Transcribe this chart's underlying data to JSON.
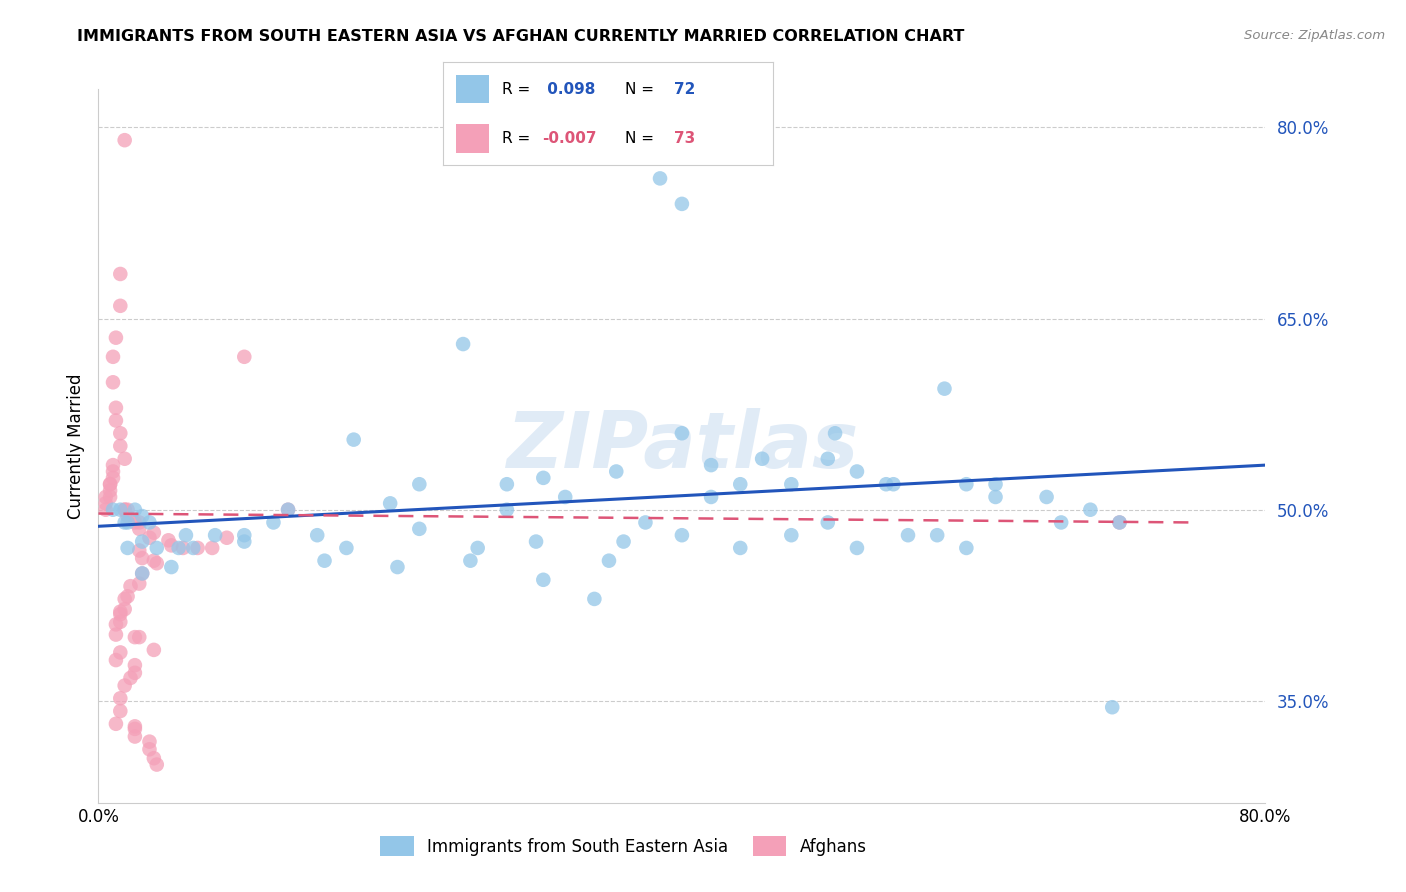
{
  "title": "IMMIGRANTS FROM SOUTH EASTERN ASIA VS AFGHAN CURRENTLY MARRIED CORRELATION CHART",
  "source": "Source: ZipAtlas.com",
  "ylabel": "Currently Married",
  "xlim": [
    0.0,
    0.8
  ],
  "ylim": [
    0.27,
    0.83
  ],
  "yticks": [
    0.35,
    0.5,
    0.65,
    0.8
  ],
  "ytick_labels": [
    "35.0%",
    "50.0%",
    "65.0%",
    "80.0%"
  ],
  "xticks": [
    0.0,
    0.2,
    0.4,
    0.6,
    0.8
  ],
  "xtick_labels": [
    "0.0%",
    "",
    "",
    "",
    "80.0%"
  ],
  "blue_color": "#93C6E8",
  "pink_color": "#F4A0B8",
  "blue_line_color": "#2255BB",
  "pink_line_color": "#DD5577",
  "legend_R_blue": "0.098",
  "legend_N_blue": "72",
  "legend_R_pink": "-0.007",
  "legend_N_pink": "73",
  "watermark": "ZIPatlas",
  "blue_scatter_x": [
    0.385,
    0.4,
    0.02,
    0.03,
    0.025,
    0.015,
    0.01,
    0.018,
    0.035,
    0.06,
    0.13,
    0.2,
    0.25,
    0.175,
    0.22,
    0.28,
    0.305,
    0.32,
    0.355,
    0.4,
    0.42,
    0.44,
    0.455,
    0.475,
    0.5,
    0.52,
    0.54,
    0.505,
    0.545,
    0.595,
    0.615,
    0.65,
    0.695,
    0.02,
    0.03,
    0.04,
    0.055,
    0.065,
    0.08,
    0.1,
    0.12,
    0.15,
    0.17,
    0.22,
    0.26,
    0.28,
    0.3,
    0.34,
    0.36,
    0.375,
    0.4,
    0.44,
    0.475,
    0.5,
    0.52,
    0.555,
    0.575,
    0.595,
    0.615,
    0.66,
    0.68,
    0.7,
    0.58,
    0.03,
    0.05,
    0.1,
    0.155,
    0.205,
    0.255,
    0.305,
    0.35,
    0.42
  ],
  "blue_scatter_y": [
    0.76,
    0.74,
    0.49,
    0.495,
    0.5,
    0.5,
    0.5,
    0.49,
    0.49,
    0.48,
    0.5,
    0.505,
    0.63,
    0.555,
    0.52,
    0.52,
    0.525,
    0.51,
    0.53,
    0.56,
    0.535,
    0.52,
    0.54,
    0.52,
    0.54,
    0.53,
    0.52,
    0.56,
    0.52,
    0.52,
    0.51,
    0.51,
    0.345,
    0.47,
    0.475,
    0.47,
    0.47,
    0.47,
    0.48,
    0.48,
    0.49,
    0.48,
    0.47,
    0.485,
    0.47,
    0.5,
    0.475,
    0.43,
    0.475,
    0.49,
    0.48,
    0.47,
    0.48,
    0.49,
    0.47,
    0.48,
    0.48,
    0.47,
    0.52,
    0.49,
    0.5,
    0.49,
    0.595,
    0.45,
    0.455,
    0.475,
    0.46,
    0.455,
    0.46,
    0.445,
    0.46,
    0.51
  ],
  "pink_scatter_x": [
    0.018,
    0.015,
    0.015,
    0.012,
    0.01,
    0.01,
    0.012,
    0.012,
    0.015,
    0.015,
    0.018,
    0.01,
    0.01,
    0.01,
    0.008,
    0.008,
    0.008,
    0.008,
    0.005,
    0.005,
    0.005,
    0.018,
    0.018,
    0.02,
    0.02,
    0.028,
    0.025,
    0.028,
    0.038,
    0.035,
    0.048,
    0.05,
    0.058,
    0.068,
    0.078,
    0.088,
    0.1,
    0.028,
    0.03,
    0.038,
    0.04,
    0.03,
    0.028,
    0.022,
    0.02,
    0.018,
    0.018,
    0.015,
    0.015,
    0.015,
    0.012,
    0.012,
    0.028,
    0.025,
    0.038,
    0.015,
    0.012,
    0.025,
    0.025,
    0.022,
    0.13,
    0.7,
    0.018,
    0.015,
    0.015,
    0.012,
    0.025,
    0.025,
    0.025,
    0.035,
    0.035,
    0.038,
    0.04
  ],
  "pink_scatter_y": [
    0.79,
    0.685,
    0.66,
    0.635,
    0.62,
    0.6,
    0.58,
    0.57,
    0.56,
    0.55,
    0.54,
    0.535,
    0.53,
    0.525,
    0.52,
    0.52,
    0.515,
    0.51,
    0.51,
    0.505,
    0.5,
    0.5,
    0.5,
    0.5,
    0.495,
    0.49,
    0.49,
    0.485,
    0.482,
    0.478,
    0.476,
    0.472,
    0.47,
    0.47,
    0.47,
    0.478,
    0.62,
    0.468,
    0.462,
    0.46,
    0.458,
    0.45,
    0.442,
    0.44,
    0.432,
    0.43,
    0.422,
    0.42,
    0.418,
    0.412,
    0.41,
    0.402,
    0.4,
    0.4,
    0.39,
    0.388,
    0.382,
    0.378,
    0.372,
    0.368,
    0.5,
    0.49,
    0.362,
    0.352,
    0.342,
    0.332,
    0.33,
    0.328,
    0.322,
    0.318,
    0.312,
    0.305,
    0.3
  ],
  "blue_trend_x": [
    0.0,
    0.8
  ],
  "blue_trend_y_start": 0.487,
  "blue_trend_y_end": 0.535,
  "pink_trend_x": [
    0.0,
    0.75
  ],
  "pink_trend_y_start": 0.497,
  "pink_trend_y_end": 0.49
}
